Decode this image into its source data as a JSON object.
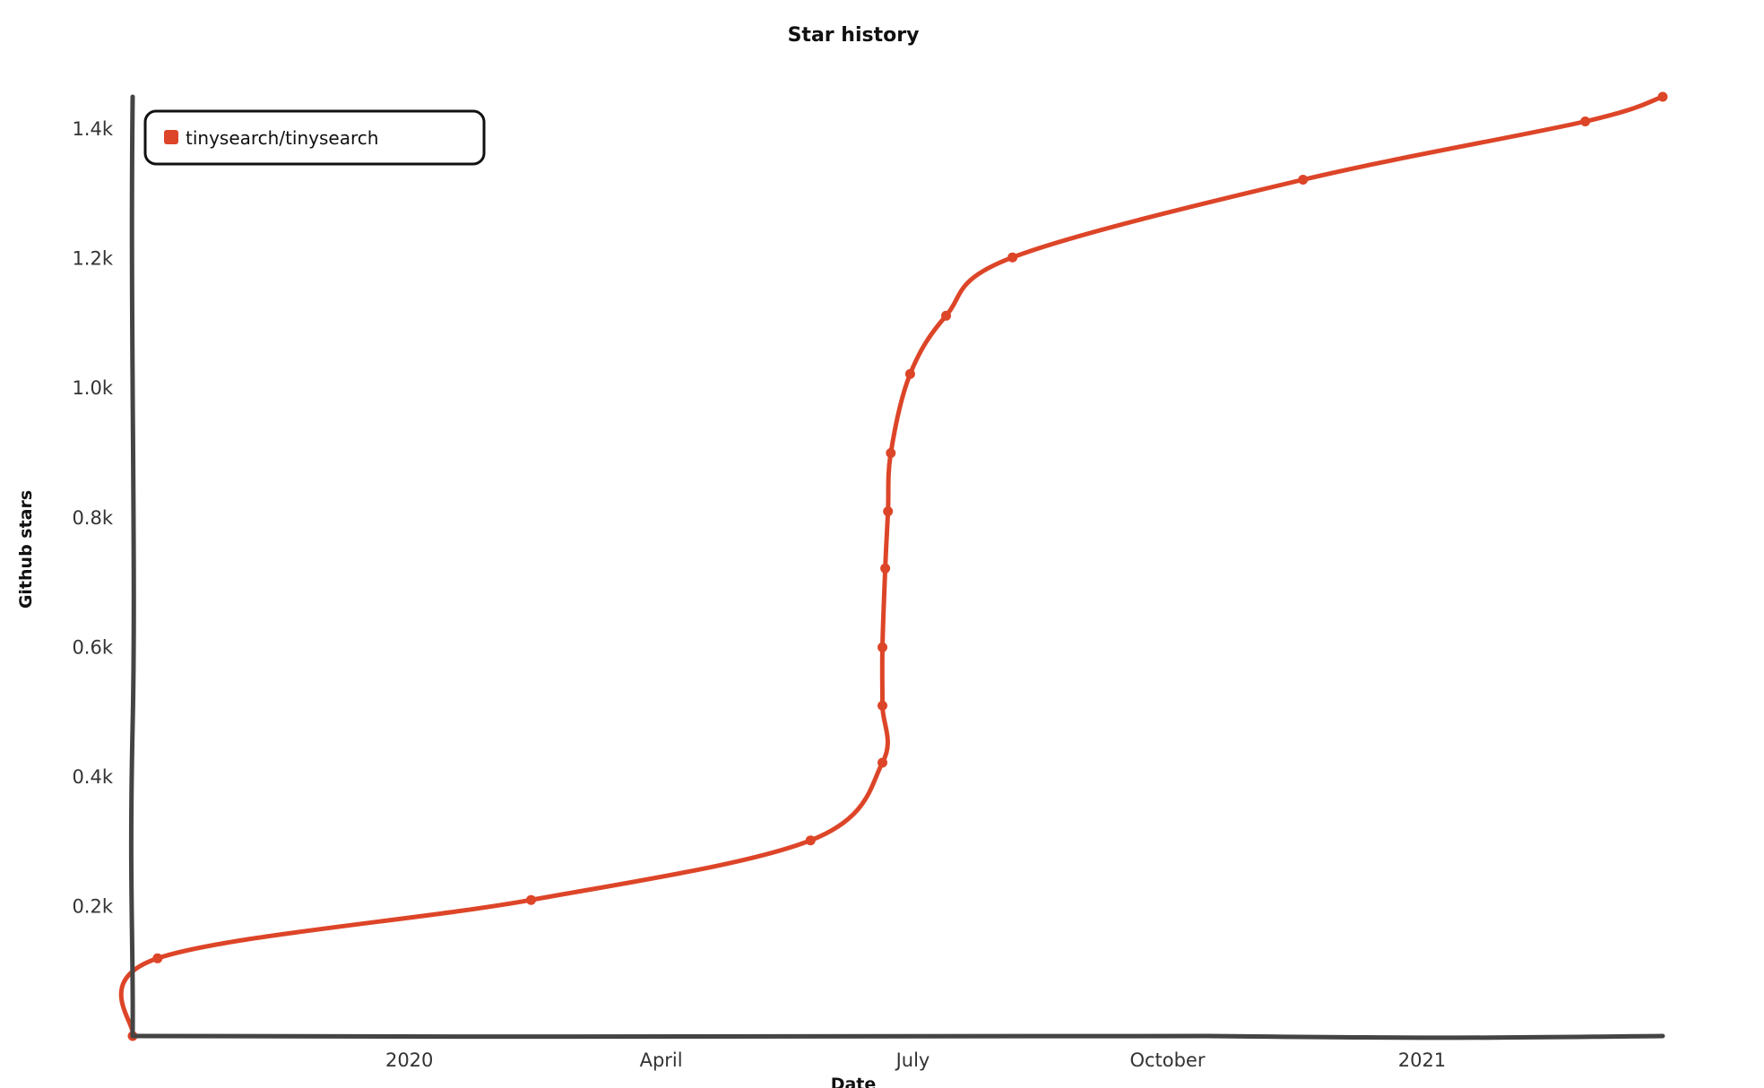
{
  "chart_data": {
    "type": "line",
    "title": "Star history",
    "xlabel": "Date",
    "ylabel": "Github stars",
    "xlim": [
      "2019-09-23",
      "2021-03-29"
    ],
    "ylim": [
      0,
      1450
    ],
    "x_ticks": [
      {
        "date": "2020-01-01",
        "label": "2020"
      },
      {
        "date": "2020-04-01",
        "label": "April"
      },
      {
        "date": "2020-07-01",
        "label": "July"
      },
      {
        "date": "2020-10-01",
        "label": "October"
      },
      {
        "date": "2021-01-01",
        "label": "2021"
      }
    ],
    "y_ticks": [
      {
        "value": 200,
        "label": "0.2k"
      },
      {
        "value": 400,
        "label": "0.4k"
      },
      {
        "value": 600,
        "label": "0.6k"
      },
      {
        "value": 800,
        "label": "0.8k"
      },
      {
        "value": 1000,
        "label": "1.0k"
      },
      {
        "value": 1200,
        "label": "1.2k"
      },
      {
        "value": 1400,
        "label": "1.4k"
      }
    ],
    "legend_position": "top-left",
    "grid": false,
    "series": [
      {
        "name": "tinysearch/tinysearch",
        "color": "#dd4528",
        "points": [
          {
            "x": "2019-09-23",
            "y": 0
          },
          {
            "x": "2019-10-02",
            "y": 120
          },
          {
            "x": "2020-02-14",
            "y": 210
          },
          {
            "x": "2020-05-25",
            "y": 302
          },
          {
            "x": "2020-06-20",
            "y": 422
          },
          {
            "x": "2020-06-20",
            "y": 510
          },
          {
            "x": "2020-06-20",
            "y": 600
          },
          {
            "x": "2020-06-21",
            "y": 722
          },
          {
            "x": "2020-06-22",
            "y": 810
          },
          {
            "x": "2020-06-23",
            "y": 900
          },
          {
            "x": "2020-06-30",
            "y": 1022
          },
          {
            "x": "2020-07-13",
            "y": 1112
          },
          {
            "x": "2020-08-06",
            "y": 1202
          },
          {
            "x": "2020-11-19",
            "y": 1322
          },
          {
            "x": "2021-03-01",
            "y": 1412
          },
          {
            "x": "2021-03-29",
            "y": 1450
          }
        ]
      }
    ]
  }
}
